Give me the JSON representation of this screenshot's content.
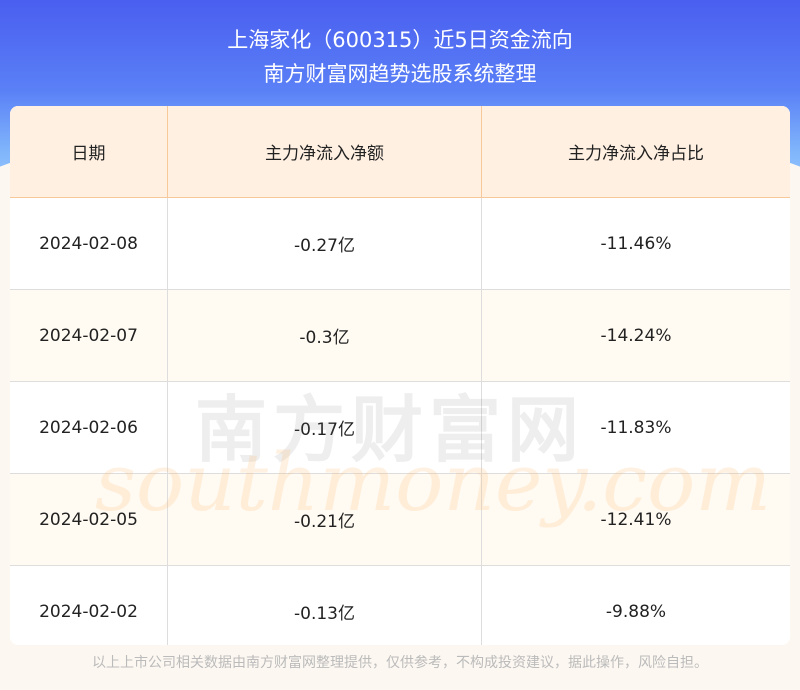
{
  "header": {
    "title": "上海家化（600315）近5日资金流向",
    "subtitle": "南方财富网趋势选股系统整理"
  },
  "chart_data": {
    "type": "table",
    "columns": [
      "日期",
      "主力净流入净额",
      "主力净流入净占比"
    ],
    "rows": [
      [
        "2024-02-08",
        "-0.27亿",
        "-11.46%"
      ],
      [
        "2024-02-07",
        "-0.3亿",
        "-14.24%"
      ],
      [
        "2024-02-06",
        "-0.17亿",
        "-11.83%"
      ],
      [
        "2024-02-05",
        "-0.21亿",
        "-12.41%"
      ],
      [
        "2024-02-02",
        "-0.13亿",
        "-9.88%"
      ]
    ]
  },
  "watermark": {
    "cn": "南方财富网",
    "en": "southmoney.com"
  },
  "footer": "以上上市公司相关数据由南方财富网整理提供，仅供参考，不构成投资建议，据此操作，风险自担。",
  "colors": {
    "banner": "#4a5ef0",
    "header_bg": "#fff0e2",
    "accent_border": "#f6c89a"
  }
}
